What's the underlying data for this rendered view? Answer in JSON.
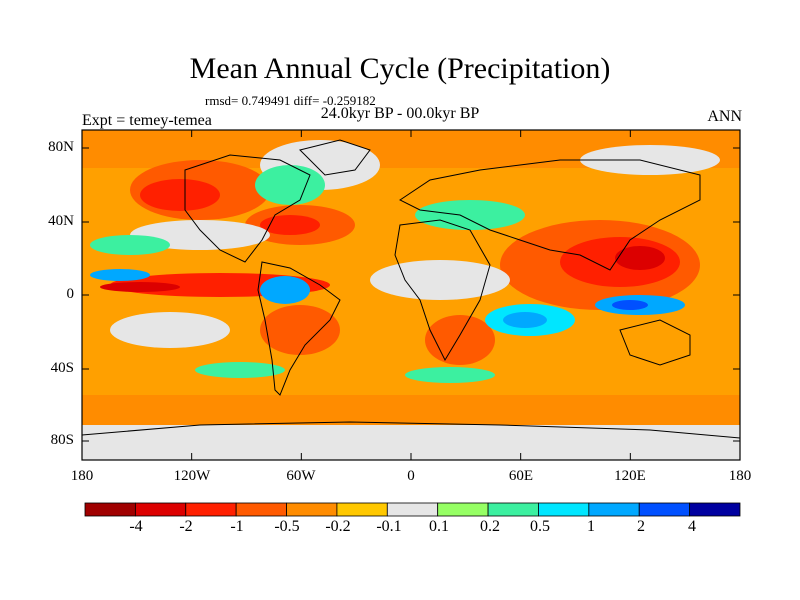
{
  "title": "Mean Annual Cycle (Precipitation)",
  "stats": "rmsd= 0.749491 diff= -0.259182",
  "period": "24.0kyr BP - 00.0kyr BP",
  "experiment": "Expt = temey-temea",
  "season": "ANN",
  "map": {
    "lat_ticks": [
      "80N",
      "40N",
      "0",
      "40S",
      "80S"
    ],
    "lon_ticks": [
      "180",
      "120W",
      "60W",
      "0",
      "60E",
      "120E",
      "180"
    ],
    "ocean_fill": "#ffa000"
  },
  "colorbar": {
    "labels": [
      "-4",
      "-2",
      "-1",
      "-0.5",
      "-0.2",
      "-0.1",
      "0.1",
      "0.2",
      "0.5",
      "1",
      "2",
      "4"
    ],
    "colors": [
      "#a00000",
      "#dc0000",
      "#ff2000",
      "#ff5a00",
      "#ff8c00",
      "#ffc800",
      "#e6e6e6",
      "#96ff64",
      "#3cf0a0",
      "#00e6ff",
      "#00a8ff",
      "#0050ff",
      "#0000a0"
    ]
  }
}
